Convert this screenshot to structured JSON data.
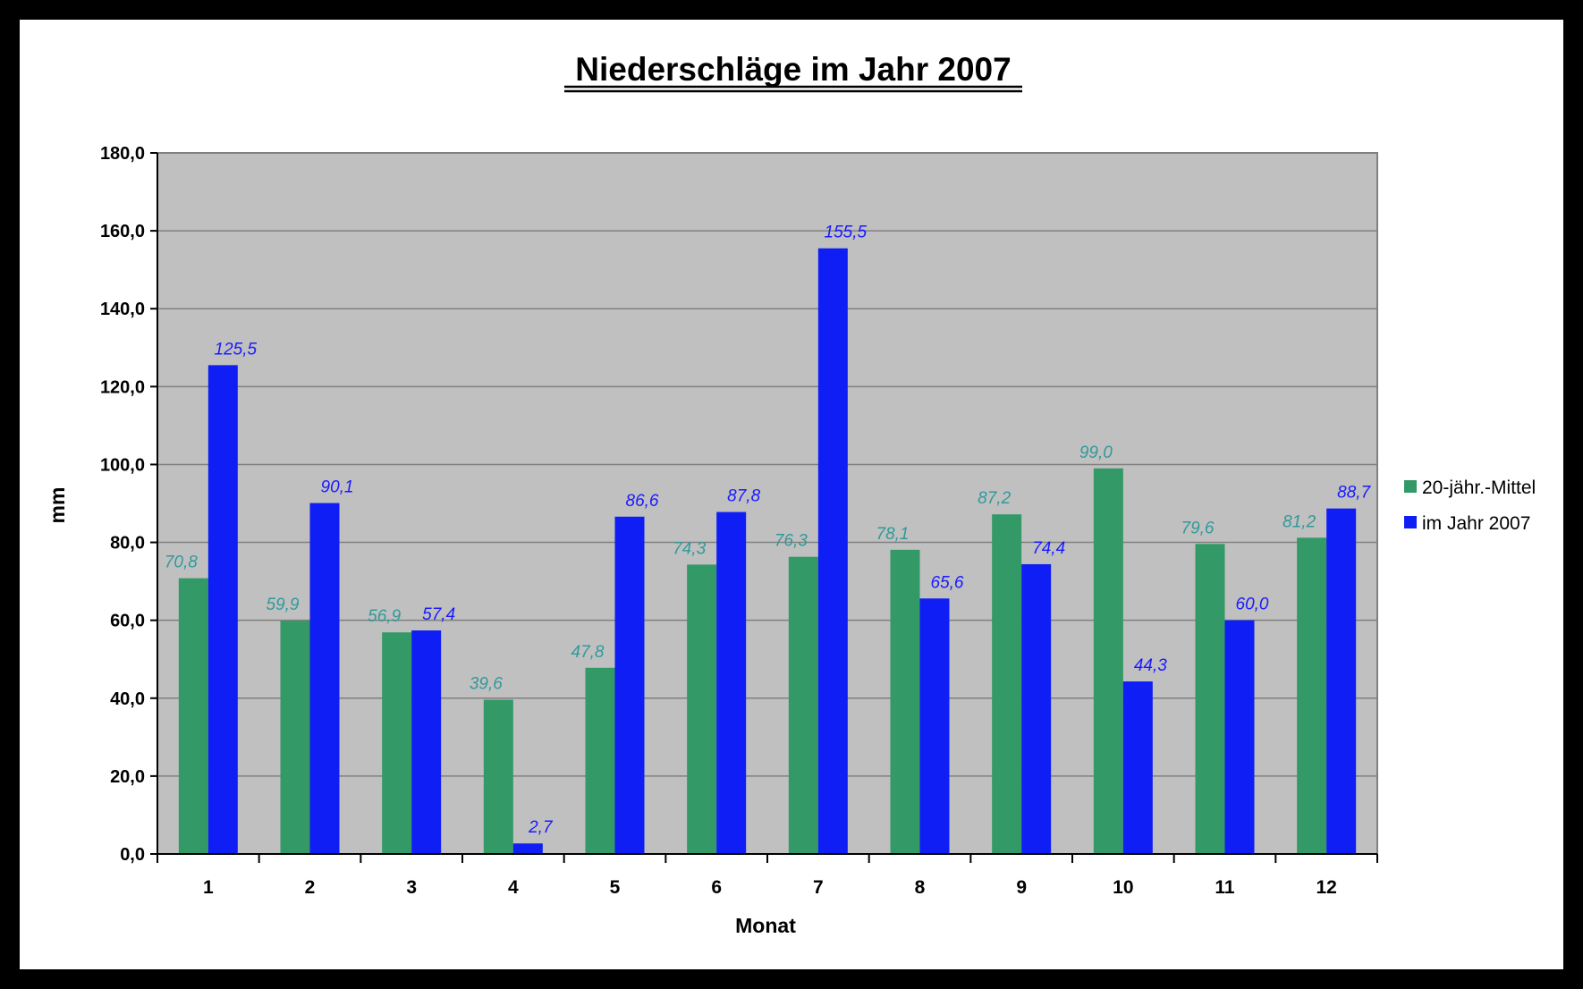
{
  "chart_data": {
    "type": "bar",
    "title": "Niederschläge im Jahr 2007",
    "xlabel": "Monat",
    "ylabel": "mm",
    "categories": [
      "1",
      "2",
      "3",
      "4",
      "5",
      "6",
      "7",
      "8",
      "9",
      "10",
      "11",
      "12"
    ],
    "series": [
      {
        "name": "20-jähr.-Mittel",
        "color": "#339966",
        "label_color": "#339999",
        "values": [
          70.8,
          59.9,
          56.9,
          39.6,
          47.8,
          74.3,
          76.3,
          78.1,
          87.2,
          99.0,
          79.6,
          81.2
        ],
        "labels": [
          "70,8",
          "59,9",
          "56,9",
          "39,6",
          "47,8",
          "74,3",
          "76,3",
          "78,1",
          "87,2",
          "99,0",
          "79,6",
          "81,2"
        ]
      },
      {
        "name": "im Jahr 2007",
        "color": "#0f1ef5",
        "label_color": "#1a1aff",
        "values": [
          125.5,
          90.1,
          57.4,
          2.7,
          86.6,
          87.8,
          155.5,
          65.6,
          74.4,
          44.3,
          60.0,
          88.7
        ],
        "labels": [
          "125,5",
          "90,1",
          "57,4",
          "2,7",
          "86,6",
          "87,8",
          "155,5",
          "65,6",
          "74,4",
          "44,3",
          "60,0",
          "88,7"
        ]
      }
    ],
    "ylim": [
      0,
      180
    ],
    "yticks": [
      "0,0",
      "20,0",
      "40,0",
      "60,0",
      "80,0",
      "100,0",
      "120,0",
      "140,0",
      "160,0",
      "180,0"
    ],
    "plot_background": "#c0c0c0",
    "grid": true,
    "legend_position": "right"
  }
}
